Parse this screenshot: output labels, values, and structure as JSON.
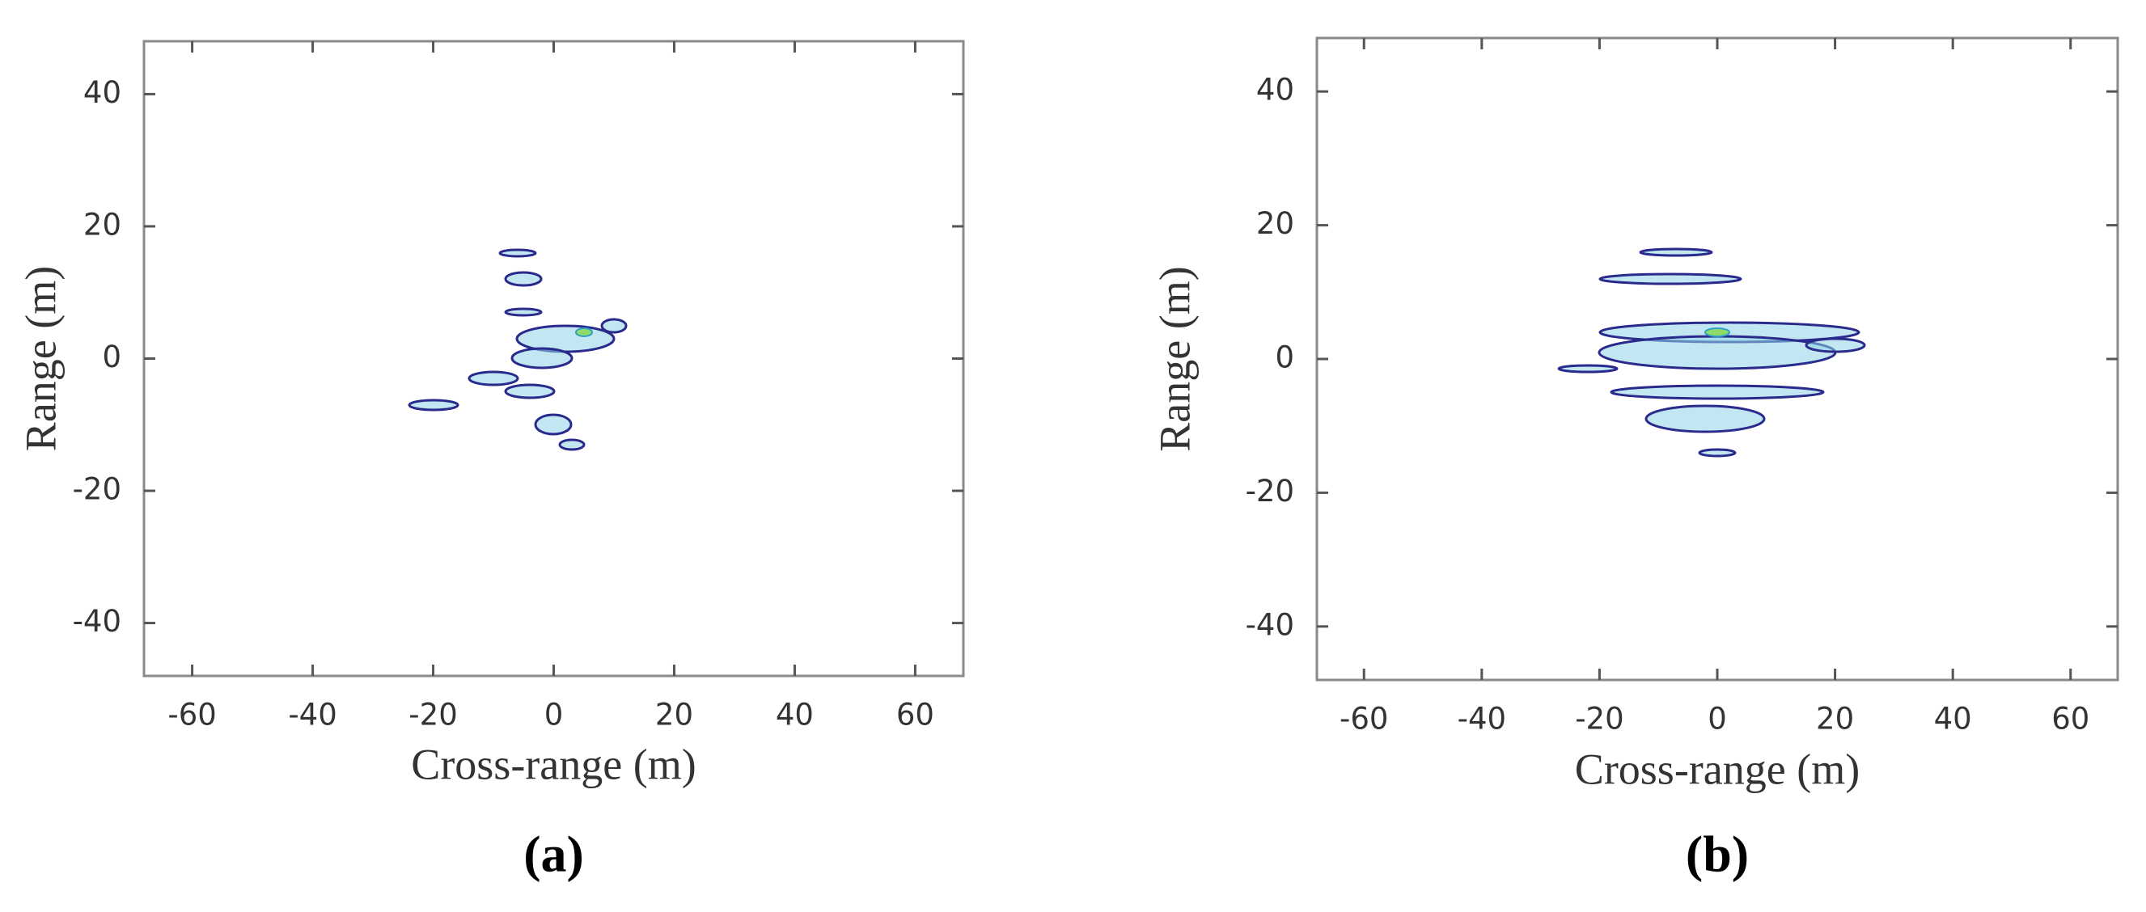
{
  "chart_data": [
    {
      "type": "contour",
      "xlabel": "Cross-range (m)",
      "ylabel": "Range (m)",
      "caption": "(a)",
      "xlim": [
        -68,
        68
      ],
      "ylim": [
        -48,
        48
      ],
      "xticks": [
        -60,
        -40,
        -20,
        0,
        20,
        40,
        60
      ],
      "yticks": [
        -40,
        -20,
        0,
        20,
        40
      ]
    },
    {
      "type": "contour",
      "xlabel": "Cross-range (m)",
      "ylabel": "Range (m)",
      "caption": "(b)",
      "xlim": [
        -68,
        68
      ],
      "ylim": [
        -48,
        48
      ],
      "xticks": [
        -60,
        -40,
        -20,
        0,
        20,
        40,
        60
      ],
      "yticks": [
        -40,
        -20,
        0,
        20,
        40
      ]
    }
  ]
}
